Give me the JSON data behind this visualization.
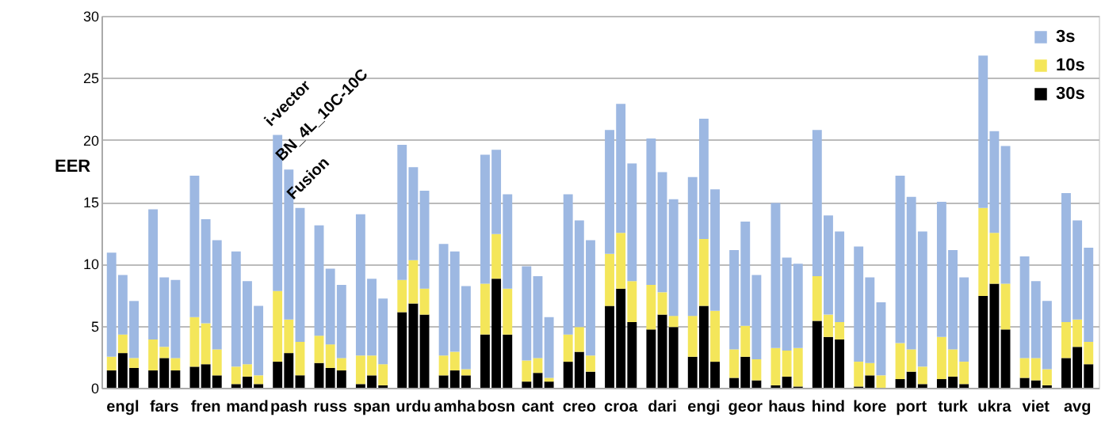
{
  "chart_data": {
    "type": "bar",
    "stacked": true,
    "ylabel": "EER",
    "categories": [
      null,
      "engl",
      null,
      null,
      "fars",
      null,
      null,
      "fren",
      null,
      null,
      "mand",
      null,
      null,
      "pash",
      null,
      null,
      "russ",
      null,
      null,
      "span",
      null,
      null,
      "urdu",
      null,
      null,
      "amha",
      null,
      null,
      "bosn",
      null,
      null,
      "cant",
      null,
      null,
      "creo",
      null,
      null,
      "croa",
      null,
      null,
      "dari",
      null,
      null,
      "engi",
      null,
      null,
      "geor",
      null,
      null,
      "haus",
      null,
      null,
      "hind",
      null,
      null,
      "kore",
      null,
      null,
      "port",
      null,
      null,
      "turk",
      null,
      null,
      "ukra",
      null,
      null,
      "viet",
      null,
      null,
      "avg",
      null
    ],
    "series": [
      {
        "name": "30s",
        "color": "#000000",
        "values": [
          1.4,
          2.8,
          1.6,
          1.4,
          2.4,
          1.4,
          1.7,
          1.9,
          1.0,
          0.3,
          0.9,
          0.3,
          2.1,
          2.8,
          1.0,
          2.0,
          1.6,
          1.4,
          0.3,
          1.0,
          0.2,
          6.1,
          6.8,
          5.9,
          1.0,
          1.4,
          1.0,
          4.3,
          8.8,
          4.3,
          0.5,
          1.2,
          0.5,
          2.1,
          2.9,
          1.3,
          6.6,
          8.0,
          5.3,
          4.7,
          5.9,
          4.9,
          2.5,
          6.6,
          2.1,
          0.8,
          2.5,
          0.6,
          0.2,
          0.9,
          0.1,
          5.4,
          4.1,
          3.9,
          0.1,
          1.0,
          0,
          0.7,
          1.3,
          0.3,
          0.7,
          0.9,
          0.3,
          7.4,
          8.4,
          4.7,
          0.8,
          0.6,
          0.2,
          2.4,
          3.3,
          1.9
        ]
      },
      {
        "name": "10s",
        "color": "#f4e65a",
        "values": [
          1.1,
          1.5,
          0.8,
          2.5,
          0.9,
          1.0,
          4.0,
          3.3,
          2.1,
          1.4,
          1.0,
          0.7,
          5.7,
          2.7,
          2.7,
          2.2,
          1.9,
          1.0,
          2.3,
          1.6,
          1.7,
          2.6,
          3.5,
          2.1,
          1.6,
          1.5,
          0.5,
          4.1,
          3.6,
          3.7,
          1.7,
          1.2,
          0.3,
          2.2,
          2.0,
          1.3,
          4.2,
          4.5,
          3.3,
          3.6,
          1.8,
          0.9,
          3.3,
          5.4,
          4.1,
          2.3,
          2.5,
          1.7,
          3.0,
          2.1,
          3.1,
          3.6,
          1.8,
          1.4,
          2.0,
          1.0,
          1.0,
          2.9,
          1.8,
          1.4,
          3.4,
          2.2,
          1.8,
          7.1,
          4.1,
          3.7,
          1.6,
          1.8,
          1.3,
          2.9,
          2.2,
          1.8
        ]
      },
      {
        "name": "3s",
        "color": "#9db8e2",
        "values": [
          8.4,
          4.8,
          4.6,
          10.5,
          5.6,
          6.3,
          11.4,
          8.4,
          8.8,
          9.3,
          6.7,
          5.6,
          12.6,
          12.1,
          10.8,
          8.9,
          6.1,
          5.9,
          11.4,
          6.2,
          5.3,
          10.9,
          7.5,
          7.9,
          9.0,
          8.1,
          6.7,
          10.4,
          6.8,
          7.6,
          7.6,
          6.6,
          4.9,
          11.3,
          8.6,
          9.3,
          10.0,
          10.4,
          9.5,
          11.8,
          9.7,
          9.4,
          11.2,
          9.7,
          9.8,
          8.0,
          8.4,
          6.8,
          11.7,
          7.5,
          6.8,
          11.8,
          8.0,
          7.3,
          9.3,
          6.9,
          5.9,
          13.5,
          12.3,
          10.9,
          10.9,
          8.0,
          6.8,
          12.3,
          8.2,
          11.1,
          8.2,
          6.2,
          5.5,
          10.4,
          8.0,
          7.6
        ]
      }
    ],
    "annotations": [
      {
        "text": "i-vector",
        "x": "pash",
        "y": 20.4
      },
      {
        "text": "BN_4L_10C-10C",
        "x": "pash",
        "y": 17.6
      },
      {
        "text": "Fusion",
        "x": "pash",
        "y": 14.5
      }
    ],
    "ylim": [
      0,
      30
    ],
    "yticks": [
      0,
      5,
      10,
      15,
      20,
      25,
      30
    ],
    "grid": "y",
    "legend": "top right"
  }
}
